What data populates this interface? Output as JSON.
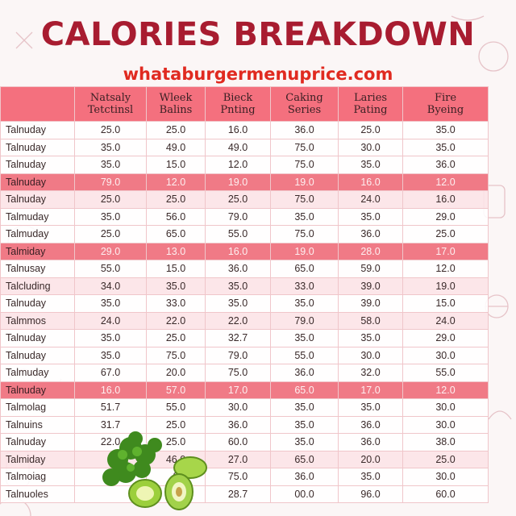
{
  "title": "CALORIES BREAKDOWN",
  "subtitle": "whataburgermenuprice.com",
  "colors": {
    "title": "#a81c30",
    "subtitle": "#e02a20",
    "header_bg": "#f4707e",
    "highlight_row": "#f07a86",
    "alt_row": "#fce4e7"
  },
  "columns": [
    {
      "line1": "Natsaly",
      "line2": "Tetctinsl"
    },
    {
      "line1": "Wleek",
      "line2": "Balins"
    },
    {
      "line1": "Bieck",
      "line2": "Pnting"
    },
    {
      "line1": "Caking",
      "line2": "Series"
    },
    {
      "line1": "Laries",
      "line2": "Pating"
    },
    {
      "line1": "Fire",
      "line2": "Byeing"
    }
  ],
  "rows": [
    {
      "label": "Talnuday",
      "style": "plain",
      "values": [
        "25.0",
        "25.0",
        "16.0",
        "36.0",
        "25.0",
        "35.0"
      ]
    },
    {
      "label": "Talnuday",
      "style": "plain",
      "values": [
        "35.0",
        "49.0",
        "49.0",
        "75.0",
        "30.0",
        "35.0"
      ]
    },
    {
      "label": "Talnuday",
      "style": "plain",
      "values": [
        "35.0",
        "15.0",
        "12.0",
        "75.0",
        "35.0",
        "36.0"
      ]
    },
    {
      "label": "Talnuday",
      "style": "hl",
      "values": [
        "79.0",
        "12.0",
        "19.0",
        "19.0",
        "16.0",
        "12.0"
      ]
    },
    {
      "label": "Talnuday",
      "style": "alt",
      "values": [
        "25.0",
        "25.0",
        "25.0",
        "75.0",
        "24.0",
        "16.0"
      ]
    },
    {
      "label": "Talmuday",
      "style": "plain",
      "values": [
        "35.0",
        "56.0",
        "79.0",
        "35.0",
        "35.0",
        "29.0"
      ]
    },
    {
      "label": "Talmuday",
      "style": "plain",
      "values": [
        "25.0",
        "65.0",
        "55.0",
        "75.0",
        "36.0",
        "25.0"
      ]
    },
    {
      "label": "Talmiday",
      "style": "hl",
      "values": [
        "29.0",
        "13.0",
        "16.0",
        "19.0",
        "28.0",
        "17.0"
      ]
    },
    {
      "label": "Talnusay",
      "style": "plain",
      "values": [
        "55.0",
        "15.0",
        "36.0",
        "65.0",
        "59.0",
        "12.0"
      ]
    },
    {
      "label": "Talcluding",
      "style": "alt",
      "values": [
        "34.0",
        "35.0",
        "35.0",
        "33.0",
        "39.0",
        "19.0"
      ]
    },
    {
      "label": "Talnuday",
      "style": "plain",
      "values": [
        "35.0",
        "33.0",
        "35.0",
        "35.0",
        "39.0",
        "15.0"
      ]
    },
    {
      "label": "Talmmos",
      "style": "alt",
      "values": [
        "24.0",
        "22.0",
        "22.0",
        "79.0",
        "58.0",
        "24.0"
      ]
    },
    {
      "label": "Talnuday",
      "style": "plain",
      "values": [
        "35.0",
        "25.0",
        "32.7",
        "35.0",
        "35.0",
        "29.0"
      ]
    },
    {
      "label": "Talnuday",
      "style": "plain",
      "values": [
        "35.0",
        "75.0",
        "79.0",
        "55.0",
        "30.0",
        "30.0"
      ]
    },
    {
      "label": "Talmuday",
      "style": "plain",
      "values": [
        "67.0",
        "20.0",
        "75.0",
        "36.0",
        "32.0",
        "55.0"
      ]
    },
    {
      "label": "Talnuday",
      "style": "hl",
      "values": [
        "16.0",
        "57.0",
        "17.0",
        "65.0",
        "17.0",
        "12.0"
      ]
    },
    {
      "label": "Talmolag",
      "style": "plain",
      "values": [
        "51.7",
        "55.0",
        "30.0",
        "35.0",
        "35.0",
        "30.0"
      ]
    },
    {
      "label": "Talnuins",
      "style": "plain",
      "values": [
        "31.7",
        "25.0",
        "36.0",
        "35.0",
        "36.0",
        "30.0"
      ]
    },
    {
      "label": "Talnuday",
      "style": "plain",
      "values": [
        "22.0",
        "25.0",
        "60.0",
        "35.0",
        "36.0",
        "38.0"
      ]
    },
    {
      "label": "Talmiday",
      "style": "alt",
      "values": [
        "",
        "46.0",
        "27.0",
        "65.0",
        "20.0",
        "25.0"
      ]
    },
    {
      "label": "Talmoiag",
      "style": "plain",
      "values": [
        "",
        "0",
        "75.0",
        "36.0",
        "35.0",
        "30.0"
      ]
    },
    {
      "label": "Talnuoles",
      "style": "plain",
      "values": [
        "",
        "33.0",
        "28.7",
        "00.0",
        "96.0",
        "60.0"
      ]
    }
  ]
}
